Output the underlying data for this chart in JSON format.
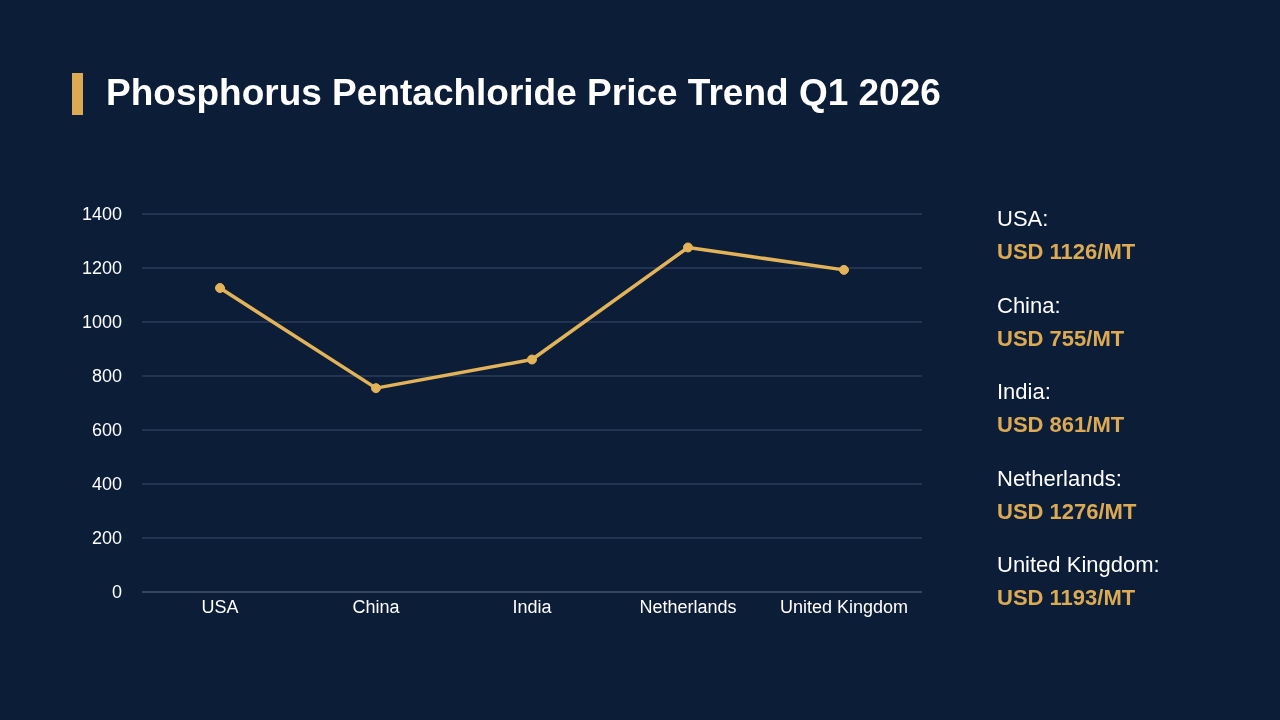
{
  "chart_data": {
    "type": "line",
    "title": "Phosphorus Pentachloride Price Trend Q1 2026",
    "categories": [
      "USA",
      "China",
      "India",
      "Netherlands",
      "United Kingdom"
    ],
    "series": [
      {
        "color": "#e3b35a",
        "values": [
          1126,
          755,
          861,
          1276,
          1193
        ]
      }
    ],
    "ylim": [
      0,
      1400
    ],
    "yticks": [
      0,
      200,
      400,
      600,
      800,
      1000,
      1200,
      1400
    ],
    "grid": "y",
    "marker": "circle",
    "line_style": "solid",
    "annotations": [
      "USA:",
      "USD 1126/MT",
      "China:",
      "USD 755/MT",
      "India:",
      "USD 861/MT",
      "Netherlands:",
      "USD 1276/MT",
      "United Kingdom:",
      "USD 1193/MT"
    ]
  }
}
